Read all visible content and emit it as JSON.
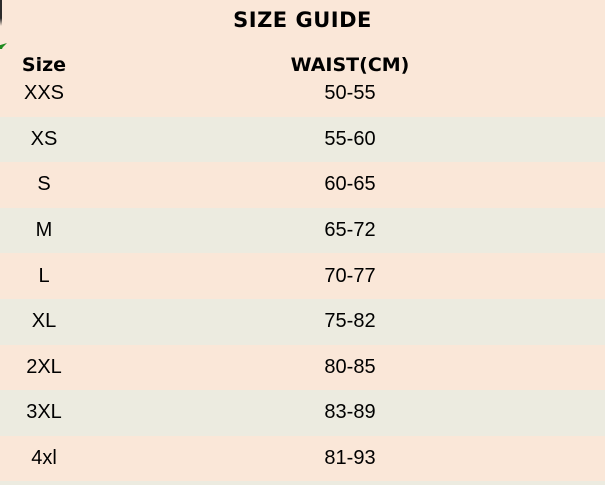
{
  "chart_data": {
    "type": "table",
    "title": "SIZE GUIDE",
    "columns": [
      "Size",
      "WAIST(CM)"
    ],
    "rows": [
      [
        "XXS",
        "50-55"
      ],
      [
        "XS",
        "55-60"
      ],
      [
        "S",
        "60-65"
      ],
      [
        "M",
        "65-72"
      ],
      [
        "L",
        "70-77"
      ],
      [
        "XL",
        "75-82"
      ],
      [
        "2XL",
        "80-85"
      ],
      [
        "3XL",
        "83-89"
      ],
      [
        "4xl",
        "81-93"
      ]
    ],
    "layout_hints": {
      "row_striping": "peach/gray alternating starting with peach",
      "value_alignment": "centered"
    }
  },
  "colors": {
    "background_peach": "#fae7d8",
    "row_alt_gray": "#ecebe0",
    "text": "#000000",
    "accent_mark_green": "#1f8a1f",
    "edge_artifact_dark": "#2b2b2b"
  }
}
